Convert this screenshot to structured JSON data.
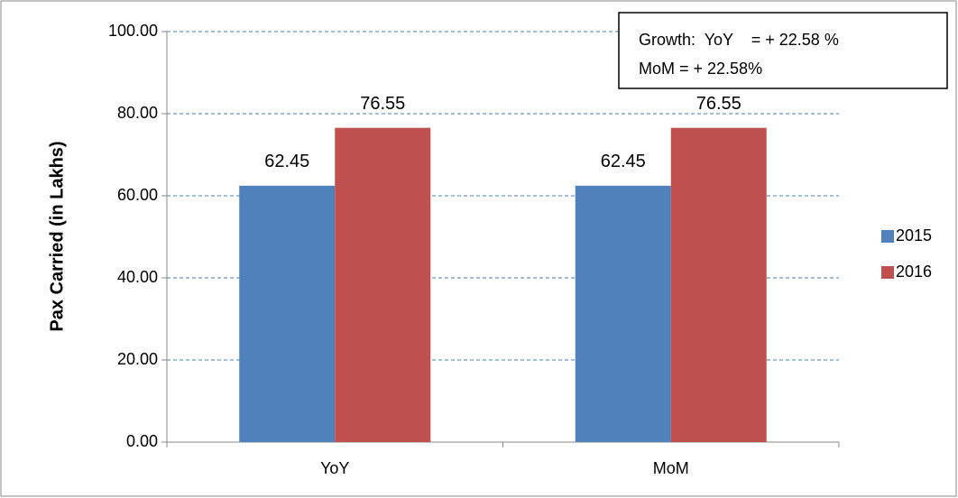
{
  "chart_data": {
    "type": "bar",
    "y_label": "Pax Carried (in Lakhs)",
    "categories": [
      "YoY",
      "MoM"
    ],
    "series": [
      {
        "name": "2015",
        "color": "#4f81bd",
        "values": [
          62.45,
          62.45
        ]
      },
      {
        "name": "2016",
        "color": "#c0504d",
        "values": [
          76.55,
          76.55
        ]
      }
    ],
    "ylim": [
      0,
      100
    ],
    "yticks": [
      {
        "value": 0,
        "label": "0.00"
      },
      {
        "value": 20,
        "label": "20.00"
      },
      {
        "value": 40,
        "label": "40.00"
      },
      {
        "value": 60,
        "label": "60.00"
      },
      {
        "value": 80,
        "label": "80.00"
      },
      {
        "value": 100,
        "label": "100.00"
      }
    ],
    "grid": true,
    "legend": "right",
    "annotation": [
      "Growth:  YoY    = + 22.58 %",
      "MoM = + 22.58%"
    ]
  }
}
